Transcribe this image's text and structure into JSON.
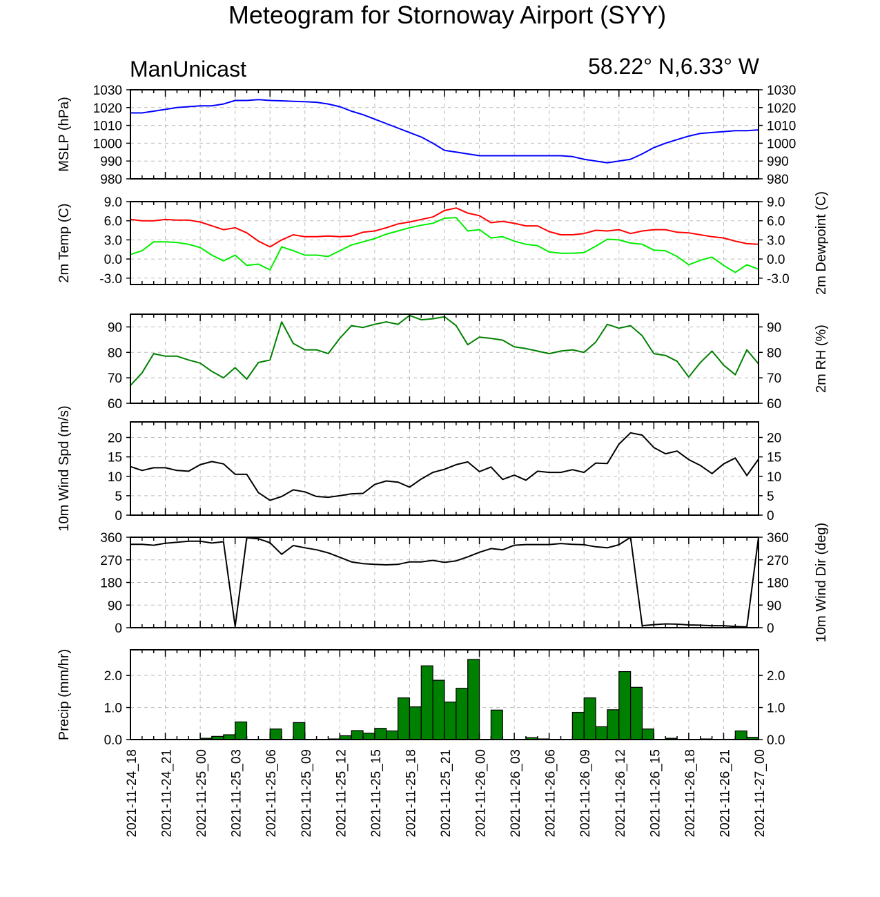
{
  "title": "Meteogram for Stornoway Airport (SYY)",
  "model": "ManUnicast",
  "location": "58.22° N,6.33° W",
  "time_labels": [
    "2021-11-24_18",
    "2021-11-24_21",
    "2021-11-25_00",
    "2021-11-25_03",
    "2021-11-25_06",
    "2021-11-25_09",
    "2021-11-25_12",
    "2021-11-25_15",
    "2021-11-25_18",
    "2021-11-25_21",
    "2021-11-26_00",
    "2021-11-26_03",
    "2021-11-26_06",
    "2021-11-26_09",
    "2021-11-26_12",
    "2021-11-26_15",
    "2021-11-26_18",
    "2021-11-26_21",
    "2021-11-27_00"
  ],
  "chart_data": [
    {
      "type": "line",
      "ylabel_left": "MSLP (hPa)",
      "ylim": [
        980,
        1030
      ],
      "yticks": [
        "980",
        "990",
        "1000",
        "1010",
        "1020",
        "1030"
      ],
      "ytick_values": [
        980,
        990,
        1000,
        1010,
        1020,
        1030
      ],
      "grid": true,
      "x_hours": [
        0,
        1,
        2,
        3,
        4,
        5,
        6,
        7,
        8,
        9,
        10,
        11,
        12,
        13,
        14,
        15,
        16,
        17,
        18,
        19,
        20,
        21,
        22,
        23,
        24,
        25,
        26,
        27,
        28,
        29,
        30,
        31,
        32,
        33,
        34,
        35,
        36,
        37,
        38,
        39,
        40,
        41,
        42,
        43,
        44,
        45,
        46,
        47,
        48,
        49,
        50,
        51,
        52,
        53,
        54
      ],
      "series": [
        {
          "color": "#0000ff",
          "values": [
            1017,
            1017,
            1018,
            1019,
            1020,
            1020.5,
            1021,
            1021,
            1022,
            1024,
            1024,
            1024.5,
            1024,
            1023.8,
            1023.5,
            1023.3,
            1023,
            1022,
            1020.5,
            1018,
            1016,
            1013.5,
            1011,
            1008.5,
            1006,
            1003.5,
            1000,
            996,
            995,
            994,
            993,
            993,
            993,
            993,
            993,
            993,
            993,
            993,
            992.5,
            991,
            990,
            989,
            990,
            991,
            994,
            997.5,
            1000,
            1002,
            1004,
            1005.5,
            1006,
            1006.5,
            1007,
            1007,
            1007.5
          ]
        }
      ]
    },
    {
      "type": "line",
      "ylabel_left": "2m Temp (C)",
      "ylabel_right": "2m Dewpoint (C)",
      "ylim": [
        -4,
        9
      ],
      "yticks": [
        "-3.0",
        "0.0",
        "3.0",
        "6.0",
        "9.0"
      ],
      "ytick_values": [
        -3,
        0,
        3,
        6,
        9
      ],
      "grid": true,
      "x_hours": [
        0,
        1,
        2,
        3,
        4,
        5,
        6,
        7,
        8,
        9,
        10,
        11,
        12,
        13,
        14,
        15,
        16,
        17,
        18,
        19,
        20,
        21,
        22,
        23,
        24,
        25,
        26,
        27,
        28,
        29,
        30,
        31,
        32,
        33,
        34,
        35,
        36,
        37,
        38,
        39,
        40,
        41,
        42,
        43,
        44,
        45,
        46,
        47,
        48,
        49,
        50,
        51,
        52,
        53,
        54
      ],
      "series": [
        {
          "color": "#ff0000",
          "values": [
            6.2,
            6,
            6,
            6.2,
            6.1,
            6.1,
            5.8,
            5.2,
            4.6,
            4.9,
            4.1,
            2.8,
            1.9,
            3,
            3.8,
            3.5,
            3.5,
            3.6,
            3.5,
            3.6,
            4.2,
            4.4,
            4.9,
            5.5,
            5.8,
            6.2,
            6.6,
            7.6,
            8,
            7.2,
            6.8,
            5.7,
            5.9,
            5.6,
            5.2,
            5.2,
            4.3,
            3.8,
            3.8,
            4,
            4.5,
            4.4,
            4.6,
            4,
            4.4,
            4.6,
            4.6,
            4.2,
            4.1,
            3.8,
            3.5,
            3.3,
            2.8,
            2.4,
            2.3
          ]
        },
        {
          "color": "#00ee00",
          "values": [
            0.7,
            1.3,
            2.7,
            2.7,
            2.6,
            2.3,
            1.8,
            0.6,
            -0.3,
            0.6,
            -1,
            -0.8,
            -1.7,
            1.9,
            1.3,
            0.6,
            0.6,
            0.4,
            1.3,
            2.2,
            2.7,
            3.2,
            3.9,
            4.4,
            4.9,
            5.3,
            5.6,
            6.4,
            6.5,
            4.4,
            4.6,
            3.3,
            3.5,
            2.8,
            2.3,
            2.1,
            1.1,
            0.9,
            0.9,
            1,
            2,
            3.1,
            3,
            2.5,
            2.3,
            1.4,
            1.3,
            0.4,
            -0.9,
            -0.2,
            0.3,
            -1,
            -2.1,
            -0.9,
            -1.6
          ]
        }
      ]
    },
    {
      "type": "line",
      "ylabel_right": "2m RH (%)",
      "ylim": [
        60,
        95
      ],
      "yticks": [
        "60",
        "70",
        "80",
        "90"
      ],
      "ytick_values": [
        60,
        70,
        80,
        90
      ],
      "grid": true,
      "x_hours": [
        0,
        1,
        2,
        3,
        4,
        5,
        6,
        7,
        8,
        9,
        10,
        11,
        12,
        13,
        14,
        15,
        16,
        17,
        18,
        19,
        20,
        21,
        22,
        23,
        24,
        25,
        26,
        27,
        28,
        29,
        30,
        31,
        32,
        33,
        34,
        35,
        36,
        37,
        38,
        39,
        40,
        41,
        42,
        43,
        44,
        45,
        46,
        47,
        48,
        49,
        50,
        51,
        52,
        53,
        54
      ],
      "series": [
        {
          "color": "#008000",
          "values": [
            67,
            72,
            79.5,
            78.5,
            78.5,
            77,
            75.8,
            72.5,
            70,
            74,
            69.5,
            76,
            77,
            92,
            83.5,
            81,
            81,
            79.5,
            85.5,
            90.5,
            89.8,
            91,
            92,
            91,
            94.5,
            92.8,
            93.2,
            94,
            90.5,
            83,
            86,
            85.5,
            84.8,
            82.2,
            81.5,
            80.5,
            79.5,
            80.5,
            81,
            80,
            84,
            91,
            89.5,
            90.5,
            86.5,
            79.5,
            78.8,
            76.5,
            70.3,
            76,
            80.5,
            75,
            71.2,
            81,
            75.5
          ]
        }
      ]
    },
    {
      "type": "line",
      "ylabel_left": "10m Wind Spd (m/s)",
      "ylim": [
        0,
        24
      ],
      "yticks": [
        "0",
        "5",
        "10",
        "15",
        "20"
      ],
      "ytick_values": [
        0,
        5,
        10,
        15,
        20
      ],
      "grid": true,
      "x_hours": [
        0,
        1,
        2,
        3,
        4,
        5,
        6,
        7,
        8,
        9,
        10,
        11,
        12,
        13,
        14,
        15,
        16,
        17,
        18,
        19,
        20,
        21,
        22,
        23,
        24,
        25,
        26,
        27,
        28,
        29,
        30,
        31,
        32,
        33,
        34,
        35,
        36,
        37,
        38,
        39,
        40,
        41,
        42,
        43,
        44,
        45,
        46,
        47,
        48,
        49,
        50,
        51,
        52,
        53,
        54
      ],
      "series": [
        {
          "color": "#000000",
          "values": [
            12.5,
            11.5,
            12.2,
            12.2,
            11.5,
            11.3,
            13,
            13.8,
            13.2,
            10.5,
            10.5,
            5.8,
            3.8,
            4.8,
            6.5,
            6,
            4.8,
            4.6,
            5,
            5.5,
            5.6,
            7.9,
            8.8,
            8.5,
            7.2,
            9.3,
            11,
            11.8,
            13,
            13.7,
            11.2,
            12.4,
            9.2,
            10.3,
            9,
            11.3,
            11,
            11,
            11.7,
            11,
            13.4,
            13.3,
            18.3,
            21.2,
            20.6,
            17.4,
            15.8,
            16.5,
            14.3,
            12.8,
            10.7,
            13.2,
            14.7,
            10.2,
            14.4
          ]
        }
      ]
    },
    {
      "type": "line",
      "ylabel_right": "10m Wind Dir (deg)",
      "ylim": [
        0,
        360
      ],
      "yticks": [
        "0",
        "90",
        "180",
        "270",
        "360"
      ],
      "ytick_values": [
        0,
        90,
        180,
        270,
        360
      ],
      "grid": true,
      "x_hours": [
        0,
        1,
        2,
        3,
        4,
        5,
        6,
        7,
        8,
        9,
        10,
        11,
        12,
        13,
        14,
        15,
        16,
        17,
        18,
        19,
        20,
        21,
        22,
        23,
        24,
        25,
        26,
        27,
        28,
        29,
        30,
        31,
        32,
        33,
        34,
        35,
        36,
        37,
        38,
        39,
        40,
        41,
        42,
        43,
        44,
        45,
        46,
        47,
        48,
        49,
        50,
        51,
        52,
        53,
        54
      ],
      "series": [
        {
          "color": "#000000",
          "values": [
            332,
            332,
            328,
            336,
            340,
            344,
            344,
            337,
            342,
            5,
            358,
            354,
            338,
            292,
            327,
            318,
            310,
            298,
            280,
            262,
            255,
            252,
            250,
            252,
            262,
            262,
            268,
            260,
            266,
            282,
            300,
            315,
            310,
            328,
            331,
            331,
            331,
            335,
            332,
            330,
            322,
            318,
            330,
            360,
            8,
            12,
            15,
            14,
            11,
            10,
            8,
            8,
            5,
            3,
            360
          ]
        }
      ]
    },
    {
      "type": "bar",
      "ylabel_left": "Precip (mm/hr)",
      "ylim": [
        0,
        2.8
      ],
      "yticks": [
        "0.0",
        "1.0",
        "2.0"
      ],
      "ytick_values": [
        0,
        1,
        2
      ],
      "grid": true,
      "x_hours": [
        0,
        1,
        2,
        3,
        4,
        5,
        6,
        7,
        8,
        9,
        10,
        11,
        12,
        13,
        14,
        15,
        16,
        17,
        18,
        19,
        20,
        21,
        22,
        23,
        24,
        25,
        26,
        27,
        28,
        29,
        30,
        31,
        32,
        33,
        34,
        35,
        36,
        37,
        38,
        39,
        40,
        41,
        42,
        43,
        44,
        45,
        46,
        47,
        48,
        49,
        50,
        51,
        52,
        53
      ],
      "series": [
        {
          "color": "#008000",
          "values": [
            0,
            0,
            0,
            0.01,
            0,
            0,
            0.04,
            0.1,
            0.15,
            0.55,
            0,
            0,
            0.33,
            0,
            0.53,
            0,
            0,
            0.02,
            0.12,
            0.28,
            0.2,
            0.35,
            0.27,
            1.3,
            1.02,
            2.3,
            1.85,
            1.17,
            1.6,
            2.5,
            0,
            0.92,
            0,
            0,
            0.06,
            0.02,
            0,
            0,
            0.85,
            1.3,
            0.4,
            0.93,
            2.12,
            1.63,
            0.33,
            0,
            0.04,
            0,
            0,
            0.02,
            0,
            0.01,
            0.27,
            0.07
          ]
        }
      ]
    }
  ]
}
